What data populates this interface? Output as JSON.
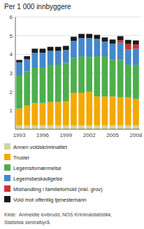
{
  "chart_data": {
    "type": "bar",
    "stacked": true,
    "title": "Per 1 000 innbyggere",
    "categories": [
      "1993",
      null,
      null,
      "1996",
      null,
      null,
      "1999",
      null,
      null,
      "2002",
      null,
      null,
      "2005",
      null,
      null,
      "2008"
    ],
    "series": [
      {
        "name": "Annen voldskriminalitet",
        "color": "#d4d49e",
        "values": [
          0.2,
          0.2,
          0.2,
          0.2,
          0.2,
          0.2,
          0.2,
          0.2,
          0.2,
          0.2,
          0.2,
          0.2,
          0.2,
          0.2,
          0.2,
          0.2
        ]
      },
      {
        "name": "Trusler",
        "color": "#f5a800",
        "values": [
          0.9,
          1.05,
          1.2,
          1.2,
          1.25,
          1.25,
          1.3,
          1.75,
          1.75,
          1.8,
          1.55,
          1.55,
          1.55,
          1.5,
          1.5,
          1.42
        ]
      },
      {
        "name": "Legemsfornærmelse",
        "color": "#4caf4c",
        "values": [
          1.75,
          1.85,
          1.9,
          1.9,
          2.0,
          2.0,
          2.05,
          1.85,
          1.95,
          1.85,
          2.15,
          2.15,
          1.95,
          2.0,
          1.75,
          1.8
        ]
      },
      {
        "name": "Legemsbeskadigelse",
        "color": "#4488cc",
        "values": [
          0.72,
          0.63,
          0.78,
          0.78,
          0.73,
          0.73,
          0.68,
          0.92,
          0.97,
          1.02,
          0.92,
          0.78,
          0.87,
          0.92,
          0.82,
          0.87
        ]
      },
      {
        "name": "Mishandling i familieforhold (inkl. grov)",
        "color": "#cc3333",
        "values": [
          0.0,
          0.0,
          0.0,
          0.0,
          0.0,
          0.0,
          0.0,
          0.0,
          0.0,
          0.0,
          0.0,
          0.0,
          0.0,
          0.13,
          0.28,
          0.23
        ]
      },
      {
        "name": "Vold mot offentlig tjenestemann",
        "color": "#1a1a1a",
        "values": [
          0.13,
          0.17,
          0.22,
          0.22,
          0.22,
          0.22,
          0.22,
          0.22,
          0.22,
          0.22,
          0.22,
          0.22,
          0.22,
          0.22,
          0.22,
          0.22
        ]
      }
    ],
    "ylim": [
      0,
      6
    ],
    "yticks": [
      1,
      2,
      3,
      4,
      5,
      6
    ],
    "grid": true,
    "legend": "bottom",
    "annotations": [
      "Kilde:  Anmeldte lovbrudd, NOS Kriminalstatistikk,",
      "Statistisk sentralbyrå."
    ]
  }
}
